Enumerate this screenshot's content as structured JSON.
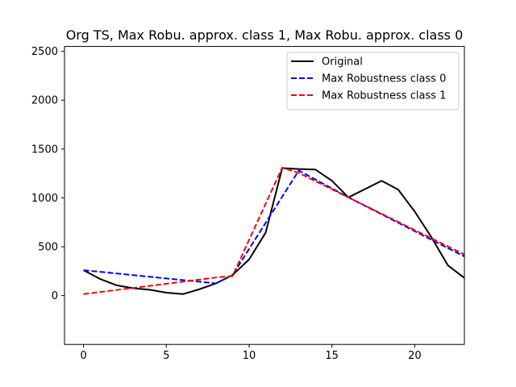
{
  "chart_data": {
    "type": "line",
    "title": "Org TS, Max Robu. approx. class 1, Max Robu. approx. class 0",
    "xlabel": "",
    "ylabel": "",
    "xlim": [
      -1.15,
      23
    ],
    "ylim": [
      -500,
      2550
    ],
    "xticks": [
      0,
      5,
      10,
      15,
      20
    ],
    "yticks": [
      0,
      500,
      1000,
      1500,
      2000,
      2500
    ],
    "grid": false,
    "legend_position": "top-right",
    "series": [
      {
        "name": "Original",
        "color": "#000000",
        "dash": "solid",
        "x": [
          0,
          1,
          2,
          3,
          4,
          5,
          6,
          7,
          8,
          9,
          10,
          11,
          12,
          13,
          14,
          15,
          16,
          17,
          18,
          19,
          20,
          21,
          22,
          23
        ],
        "y": [
          260,
          170,
          105,
          75,
          60,
          30,
          15,
          65,
          125,
          210,
          370,
          645,
          1305,
          1295,
          1290,
          1175,
          1005,
          1090,
          1175,
          1085,
          860,
          600,
          310,
          180
        ]
      },
      {
        "name": "Max Robustness class 0",
        "color": "#0000ff",
        "dash": "dashed",
        "x": [
          0,
          8,
          9,
          13,
          16,
          23
        ],
        "y": [
          260,
          125,
          210,
          1280,
          1005,
          400
        ]
      },
      {
        "name": "Max Robustness class 1",
        "color": "#ff0000",
        "dash": "dashed",
        "x": [
          0,
          8,
          9,
          12,
          13,
          23
        ],
        "y": [
          15,
          185,
          200,
          1310,
          1255,
          420
        ]
      }
    ]
  }
}
